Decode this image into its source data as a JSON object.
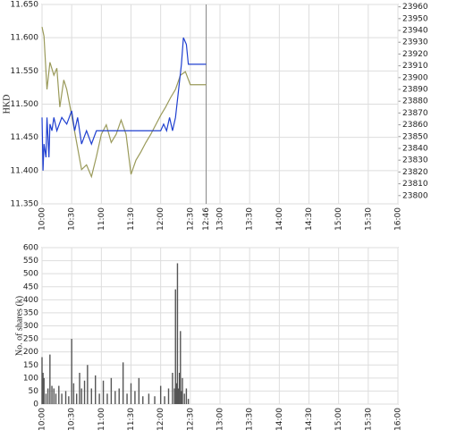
{
  "chart_data": [
    {
      "type": "line",
      "y_label": "HKD",
      "grid": true,
      "marker_x": "12:46",
      "marker_color": "#888888",
      "xlim": [
        "10:00",
        "16:00"
      ],
      "xticks": [
        "10:00",
        "10:30",
        "11:00",
        "11:30",
        "12:00",
        "12:30",
        "13:00",
        "13:30",
        "14:00",
        "14:30",
        "15:00",
        "15:30",
        "16:00"
      ],
      "ylim": [
        11.35,
        11.65
      ],
      "yticks": [
        {
          "value": 11.35,
          "label": "11.350"
        },
        {
          "value": 11.4,
          "label": "11.400"
        },
        {
          "value": 11.45,
          "label": "11.450"
        },
        {
          "value": 11.5,
          "label": "11.500"
        },
        {
          "value": 11.55,
          "label": "11.550"
        },
        {
          "value": 11.6,
          "label": "11.600"
        },
        {
          "value": 11.65,
          "label": "11.650"
        }
      ],
      "y2lim": [
        23793,
        23962
      ],
      "y2ticks": [
        23800,
        23810,
        23820,
        23830,
        23840,
        23850,
        23860,
        23870,
        23880,
        23890,
        23900,
        23910,
        23920,
        23930,
        23940,
        23950,
        23960
      ],
      "series": [
        {
          "color": "#9a9a5a",
          "axis": "y2",
          "x": [
            "10:00",
            "10:02",
            "10:05",
            "10:08",
            "10:12",
            "10:15",
            "10:18",
            "10:22",
            "10:25",
            "10:30",
            "10:35",
            "10:40",
            "10:45",
            "10:50",
            "10:55",
            "11:00",
            "11:05",
            "11:10",
            "11:15",
            "11:20",
            "11:25",
            "11:30",
            "11:35",
            "11:40",
            "11:45",
            "11:50",
            "11:55",
            "12:00",
            "12:05",
            "12:10",
            "12:15",
            "12:20",
            "12:25",
            "12:30",
            "12:35",
            "12:40",
            "12:46"
          ],
          "values": [
            23943,
            23935,
            23890,
            23913,
            23902,
            23908,
            23875,
            23898,
            23890,
            23868,
            23845,
            23822,
            23826,
            23816,
            23833,
            23852,
            23860,
            23845,
            23852,
            23864,
            23852,
            23818,
            23830,
            23837,
            23845,
            23852,
            23860,
            23868,
            23875,
            23883,
            23890,
            23902,
            23905,
            23894,
            23894,
            23894,
            23894
          ]
        },
        {
          "color": "#2040d0",
          "x": [
            "10:00",
            "10:01",
            "10:02",
            "10:04",
            "10:05",
            "10:07",
            "10:08",
            "10:10",
            "10:12",
            "10:15",
            "10:20",
            "10:25",
            "10:30",
            "10:33",
            "10:36",
            "10:40",
            "10:45",
            "10:50",
            "10:55",
            "11:00",
            "11:30",
            "11:45",
            "12:00",
            "12:03",
            "12:06",
            "12:09",
            "12:12",
            "12:15",
            "12:18",
            "12:21",
            "12:23",
            "12:26",
            "12:28",
            "12:46"
          ],
          "values": [
            11.48,
            11.4,
            11.44,
            11.42,
            11.48,
            11.42,
            11.47,
            11.46,
            11.48,
            11.46,
            11.48,
            11.47,
            11.49,
            11.46,
            11.48,
            11.44,
            11.46,
            11.44,
            11.46,
            11.46,
            11.46,
            11.46,
            11.46,
            11.47,
            11.46,
            11.48,
            11.46,
            11.48,
            11.52,
            11.56,
            11.6,
            11.59,
            11.56,
            11.56
          ]
        }
      ]
    },
    {
      "type": "bar",
      "y_label": "No. of shares (k)",
      "grid": true,
      "color": "#555555",
      "xlim": [
        "10:00",
        "16:00"
      ],
      "xticks": [
        "10:00",
        "10:30",
        "11:00",
        "11:30",
        "12:00",
        "12:30",
        "13:00",
        "13:30",
        "14:00",
        "14:30",
        "15:00",
        "15:30",
        "16:00"
      ],
      "ylim": [
        0,
        600
      ],
      "yticks": [
        0,
        50,
        100,
        150,
        200,
        250,
        300,
        350,
        400,
        450,
        500,
        550,
        600
      ],
      "x": [
        "10:00",
        "10:01",
        "10:02",
        "10:04",
        "10:06",
        "10:08",
        "10:10",
        "10:12",
        "10:14",
        "10:17",
        "10:20",
        "10:24",
        "10:27",
        "10:30",
        "10:32",
        "10:35",
        "10:38",
        "10:40",
        "10:43",
        "10:46",
        "10:50",
        "10:54",
        "10:58",
        "11:02",
        "11:06",
        "11:10",
        "11:14",
        "11:18",
        "11:22",
        "11:26",
        "11:30",
        "11:34",
        "11:38",
        "11:42",
        "11:48",
        "11:54",
        "12:00",
        "12:04",
        "12:08",
        "12:12",
        "12:14",
        "12:15",
        "12:16",
        "12:17",
        "12:18",
        "12:19",
        "12:20",
        "12:21",
        "12:22",
        "12:24",
        "12:26",
        "12:28"
      ],
      "values": [
        180,
        120,
        100,
        40,
        60,
        190,
        70,
        60,
        40,
        70,
        40,
        50,
        30,
        250,
        80,
        40,
        120,
        60,
        90,
        150,
        60,
        110,
        40,
        90,
        40,
        100,
        50,
        60,
        160,
        40,
        80,
        50,
        100,
        30,
        40,
        30,
        70,
        30,
        60,
        120,
        60,
        440,
        80,
        540,
        60,
        120,
        280,
        50,
        100,
        40,
        60,
        20
      ]
    }
  ]
}
